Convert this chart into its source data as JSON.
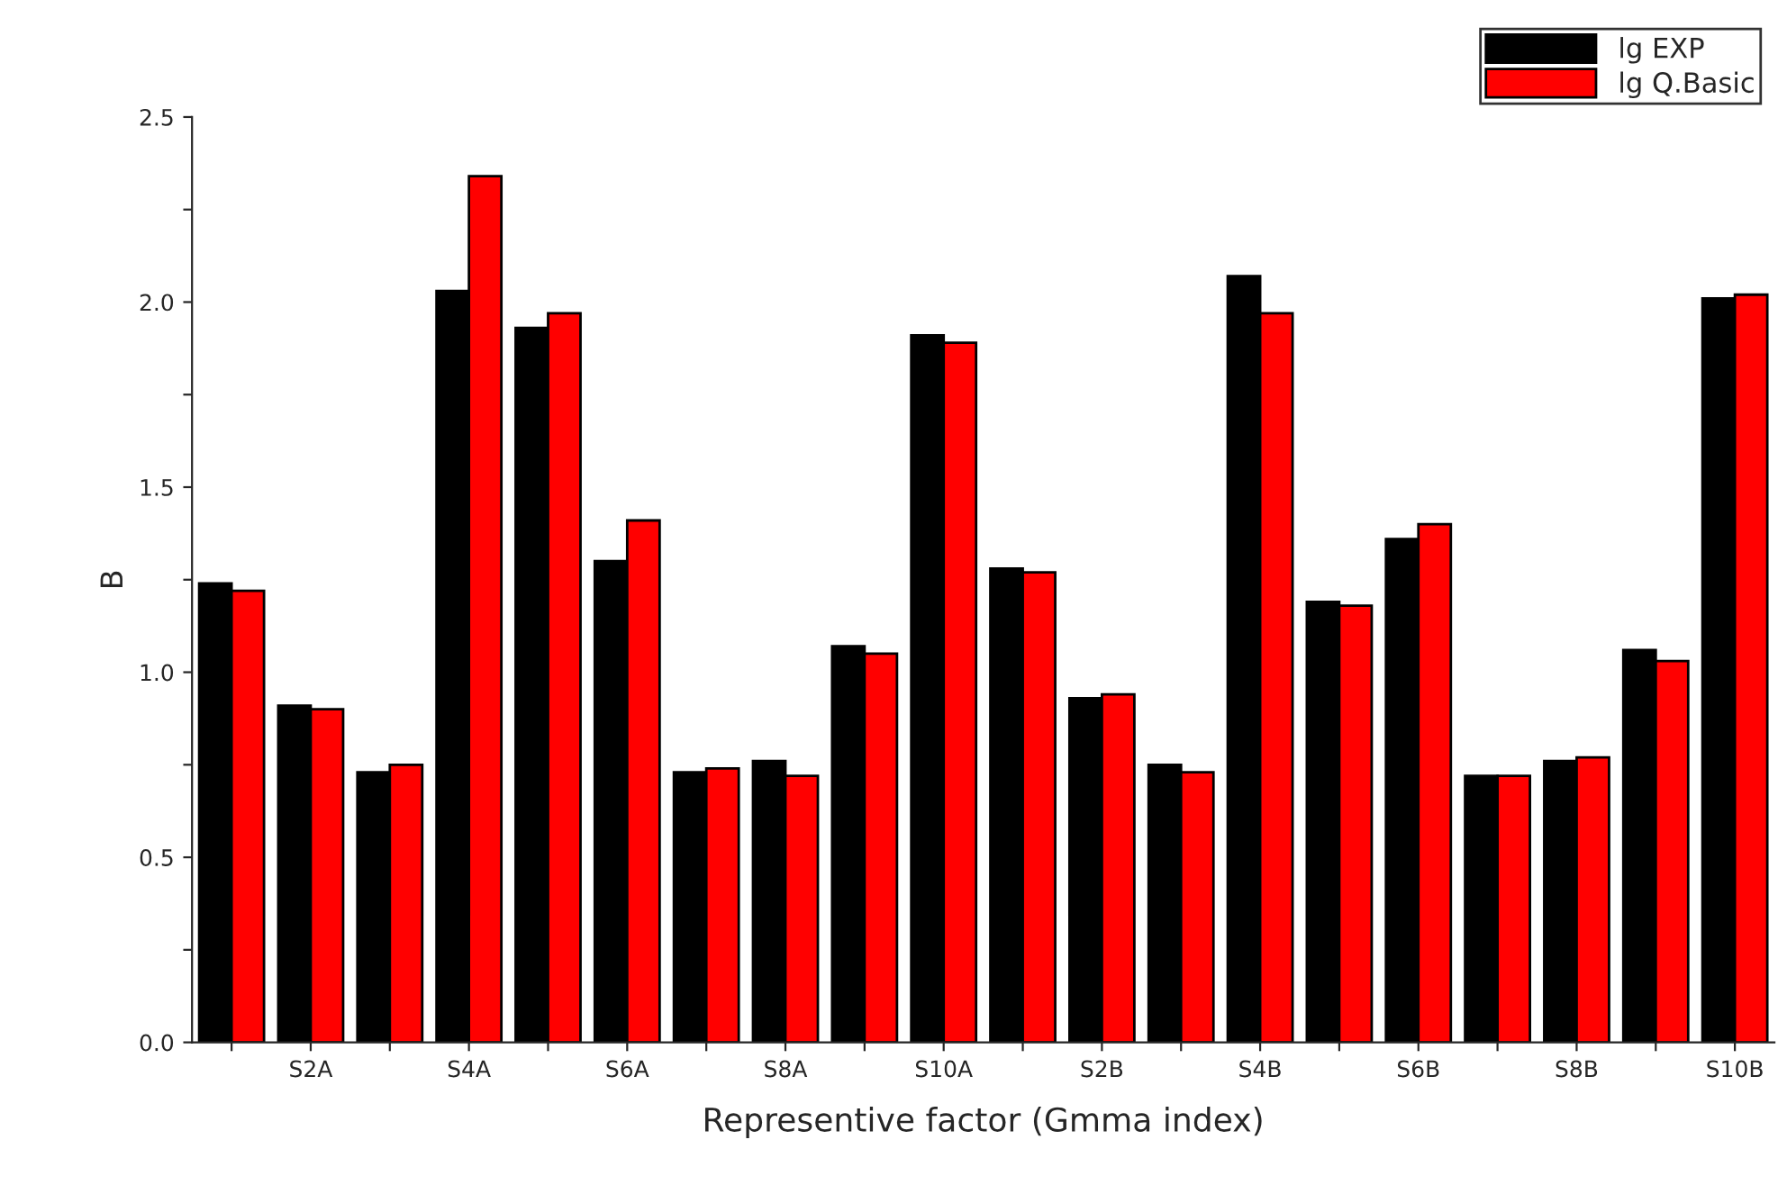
{
  "chart_data": {
    "type": "bar",
    "xlabel": "Representive factor (Gmma index)",
    "ylabel": "B",
    "categories": [
      null,
      "S2A",
      null,
      "S4A",
      null,
      "S6A",
      null,
      "S8A",
      null,
      "S10A",
      null,
      "S2B",
      null,
      "S4B",
      null,
      "S6B",
      null,
      "S8B",
      null,
      "S10B"
    ],
    "series": [
      {
        "name": "lg EXP",
        "color": "#000000",
        "values": [
          1.24,
          0.91,
          0.73,
          2.03,
          1.93,
          1.3,
          0.73,
          0.76,
          1.07,
          1.91,
          1.28,
          0.93,
          0.75,
          2.07,
          1.19,
          1.36,
          0.72,
          0.76,
          1.06,
          2.01
        ]
      },
      {
        "name": "lg Q.Basic",
        "color": "#ff0000",
        "values": [
          1.22,
          0.9,
          0.75,
          2.34,
          1.97,
          1.41,
          0.74,
          0.72,
          1.05,
          1.89,
          1.27,
          0.94,
          0.73,
          1.97,
          1.18,
          1.4,
          0.72,
          0.77,
          1.03,
          2.02
        ]
      }
    ],
    "ylim": [
      0,
      2.5
    ],
    "yticks": [
      {
        "value": 0,
        "label": "0.0"
      },
      {
        "value": 0.25,
        "label": null
      },
      {
        "value": 0.5,
        "label": "0.5"
      },
      {
        "value": 0.75,
        "label": null
      },
      {
        "value": 1.0,
        "label": "1.0"
      },
      {
        "value": 1.25,
        "label": null
      },
      {
        "value": 1.5,
        "label": "1.5"
      },
      {
        "value": 1.75,
        "label": null
      },
      {
        "value": 2.0,
        "label": "2.0"
      },
      {
        "value": 2.25,
        "label": null
      },
      {
        "value": 2.5,
        "label": "2.5"
      }
    ],
    "grid": false,
    "legend": "top right"
  }
}
